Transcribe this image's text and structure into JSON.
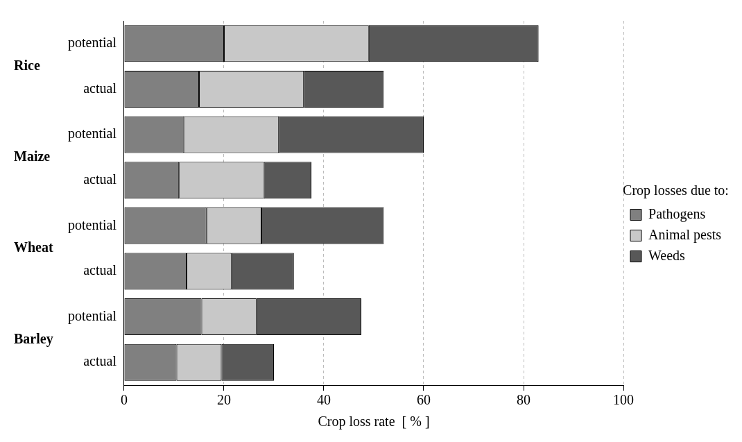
{
  "chart_data": {
    "type": "bar",
    "orientation": "horizontal",
    "stacked": true,
    "categories": [
      "potential",
      "actual",
      "potential",
      "actual",
      "potential",
      "actual",
      "potential",
      "actual"
    ],
    "series": [
      {
        "name": "Pathogens",
        "color": "#808080",
        "values": [
          20,
          15,
          12,
          11,
          16.5,
          12.5,
          15.5,
          10.5
        ]
      },
      {
        "name": "Animal pests",
        "color": "#c8c8c8",
        "values": [
          29,
          21,
          19,
          17,
          11,
          9,
          11,
          9
        ]
      },
      {
        "name": "Weeds",
        "color": "#585858",
        "values": [
          34,
          16,
          29,
          9.5,
          24.5,
          12.5,
          21,
          10.5
        ]
      }
    ],
    "xlabel": "Crop loss rate  [ % ]",
    "legend_title": "Crop losses due to:",
    "legend": "right",
    "xlim": [
      0,
      100
    ],
    "xticks": [
      0,
      20,
      40,
      60,
      80,
      100
    ],
    "grid": "x",
    "annotations": [
      "Rice",
      "Maize",
      "Wheat",
      "Barley"
    ]
  }
}
